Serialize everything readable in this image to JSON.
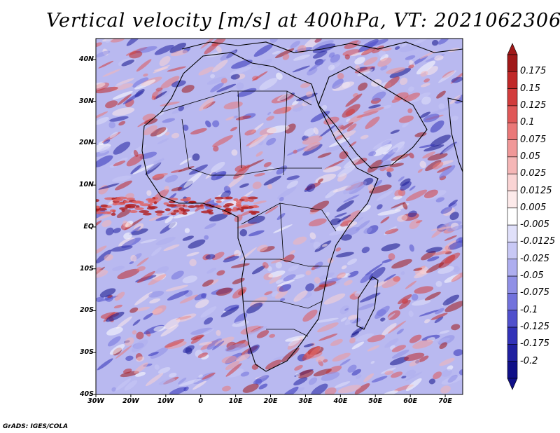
{
  "figure": {
    "title": "Vertical velocity [m/s] at 400hPa, VT: 2021062306",
    "credit": "GrADS: IGES/COLA"
  },
  "axes": {
    "lat_labels": [
      "40N",
      "30N",
      "20N",
      "10N",
      "EQ",
      "10S",
      "20S",
      "30S",
      "40S"
    ],
    "lat_values": [
      40,
      30,
      20,
      10,
      0,
      -10,
      -20,
      -30,
      -40
    ],
    "lon_labels": [
      "30W",
      "20W",
      "10W",
      "0",
      "10E",
      "20E",
      "30E",
      "40E",
      "50E",
      "60E",
      "70E"
    ],
    "lon_values": [
      -30,
      -20,
      -10,
      0,
      10,
      20,
      30,
      40,
      50,
      60,
      70
    ],
    "lon_range": [
      -30,
      75
    ],
    "lat_range": [
      -40,
      45
    ]
  },
  "colorbar": {
    "labels": [
      "0.175",
      "0.15",
      "0.125",
      "0.1",
      "0.075",
      "0.05",
      "0.025",
      "0.0125",
      "0.005",
      "-0.005",
      "-0.0125",
      "-0.025",
      "-0.05",
      "-0.075",
      "-0.1",
      "-0.125",
      "-0.175",
      "-0.2"
    ],
    "colors": [
      "#a01818",
      "#c02828",
      "#d23c3c",
      "#e05858",
      "#ea7878",
      "#f09898",
      "#f5b6b6",
      "#fad4d4",
      "#fdeaea",
      "#ffffff",
      "#e0e0fa",
      "#c8c8f5",
      "#aeaeef",
      "#9090e6",
      "#7272dc",
      "#5050cc",
      "#3232b8",
      "#2020a0",
      "#101088"
    ]
  },
  "map_style": {
    "land_outline": "#000000",
    "field_blue": "#a8a8ee",
    "field_red": "#f0a0a0"
  }
}
